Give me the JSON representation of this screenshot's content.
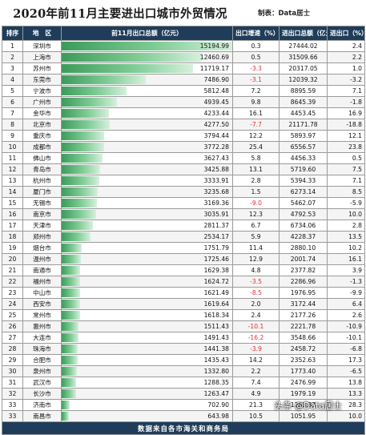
{
  "title": "2020年前11月主要进出口城市外贸情况",
  "maker": "制表：Data居士",
  "headers": [
    "排序",
    "地　区",
    "前11月出口总额（亿元）",
    "出口增速（%）",
    "进出口总额（亿元）",
    "进出口（%）"
  ],
  "footer": "数据来自各市海关和商务局",
  "watermark": "头条 @Data居士",
  "colors": {
    "header_bg": "#1f3d5a",
    "bar": "#5fb878",
    "negative": "#e03030"
  },
  "chart_data": {
    "type": "table",
    "xlim": [
      0,
      15194.99
    ],
    "rows": [
      {
        "rank": "1",
        "city": "深圳市",
        "export": "15194.99",
        "export_growth": "0.3",
        "trade_total": "27444.02",
        "trade_growth": "2.4"
      },
      {
        "rank": "2",
        "city": "上海市",
        "export": "12460.69",
        "export_growth": "0.5",
        "trade_total": "31509.66",
        "trade_growth": "2.2"
      },
      {
        "rank": "3",
        "city": "苏州市",
        "export": "11719.17",
        "export_growth": "-3.3",
        "trade_total": "20317.05",
        "trade_growth": "1.0"
      },
      {
        "rank": "4",
        "city": "东莞市",
        "export": "7486.90",
        "export_growth": "-3.1",
        "trade_total": "12039.32",
        "trade_growth": "-3.2"
      },
      {
        "rank": "5",
        "city": "宁波市",
        "export": "5812.48",
        "export_growth": "7.2",
        "trade_total": "8895.59",
        "trade_growth": "7.1"
      },
      {
        "rank": "6",
        "city": "广州市",
        "export": "4939.45",
        "export_growth": "9.8",
        "trade_total": "8645.39",
        "trade_growth": "-1.8"
      },
      {
        "rank": "7",
        "city": "金华市",
        "export": "4233.44",
        "export_growth": "16.1",
        "trade_total": "4453.45",
        "trade_growth": "16.9"
      },
      {
        "rank": "8",
        "city": "北京市",
        "export": "4277.50",
        "export_growth": "-7.7",
        "trade_total": "21171.78",
        "trade_growth": "-18.8"
      },
      {
        "rank": "9",
        "city": "重庆市",
        "export": "3794.44",
        "export_growth": "12.2",
        "trade_total": "5893.97",
        "trade_growth": "12.1"
      },
      {
        "rank": "10",
        "city": "成都市",
        "export": "3772.28",
        "export_growth": "25.4",
        "trade_total": "6556.57",
        "trade_growth": "23.8"
      },
      {
        "rank": "11",
        "city": "佛山市",
        "export": "3627.43",
        "export_growth": "5.8",
        "trade_total": "4456.33",
        "trade_growth": "0.5"
      },
      {
        "rank": "12",
        "city": "青岛市",
        "export": "3425.88",
        "export_growth": "13.1",
        "trade_total": "5719.60",
        "trade_growth": "7.5"
      },
      {
        "rank": "13",
        "city": "杭州市",
        "export": "3333.91",
        "export_growth": "2.8",
        "trade_total": "5394.33",
        "trade_growth": "7.1"
      },
      {
        "rank": "14",
        "city": "厦门市",
        "export": "3235.68",
        "export_growth": "1.5",
        "trade_total": "6273.14",
        "trade_growth": "8.5"
      },
      {
        "rank": "15",
        "city": "无锡市",
        "export": "3169.36",
        "export_growth": "-9.0",
        "trade_total": "5462.07",
        "trade_growth": "-5.9"
      },
      {
        "rank": "16",
        "city": "南京市",
        "export": "3035.91",
        "export_growth": "12.3",
        "trade_total": "4792.53",
        "trade_growth": "10.0"
      },
      {
        "rank": "17",
        "city": "天津市",
        "export": "2811.37",
        "export_growth": "6.7",
        "trade_total": "6734.06",
        "trade_growth": "2.8"
      },
      {
        "rank": "18",
        "city": "郑州市",
        "export": "2534.17",
        "export_growth": "5.9",
        "trade_total": "4228.37",
        "trade_growth": "13.5"
      },
      {
        "rank": "19",
        "city": "烟台市",
        "export": "1751.79",
        "export_growth": "11.4",
        "trade_total": "2880.10",
        "trade_growth": "10.2"
      },
      {
        "rank": "20",
        "city": "温州市",
        "export": "1725.46",
        "export_growth": "12.9",
        "trade_total": "2001.74",
        "trade_growth": "16.1"
      },
      {
        "rank": "21",
        "city": "南通市",
        "export": "1629.38",
        "export_growth": "4.8",
        "trade_total": "2377.82",
        "trade_growth": "3.9"
      },
      {
        "rank": "22",
        "city": "福州市",
        "export": "1624.72",
        "export_growth": "-3.5",
        "trade_total": "2286.96",
        "trade_growth": "-1.3"
      },
      {
        "rank": "23",
        "city": "中山市",
        "export": "1621.49",
        "export_growth": "-8.5",
        "trade_total": "1976.95",
        "trade_growth": "-9.9"
      },
      {
        "rank": "24",
        "city": "西安市",
        "export": "1619.64",
        "export_growth": "2.0",
        "trade_total": "3172.44",
        "trade_growth": "6.4"
      },
      {
        "rank": "25",
        "city": "常州市",
        "export": "1618.34",
        "export_growth": "2.4",
        "trade_total": "2177.26",
        "trade_growth": "2.6"
      },
      {
        "rank": "26",
        "city": "惠州市",
        "export": "1511.43",
        "export_growth": "-10.1",
        "trade_total": "2221.78",
        "trade_growth": "-10.9"
      },
      {
        "rank": "27",
        "city": "大连市",
        "export": "1491.43",
        "export_growth": "-16.2",
        "trade_total": "3548.66",
        "trade_growth": "-10.1"
      },
      {
        "rank": "28",
        "city": "珠海市",
        "export": "1441.38",
        "export_growth": "-3.9",
        "trade_total": "2458.72",
        "trade_growth": "-6.8"
      },
      {
        "rank": "29",
        "city": "合肥市",
        "export": "1435.43",
        "export_growth": "14.2",
        "trade_total": "2352.63",
        "trade_growth": "17.3"
      },
      {
        "rank": "30",
        "city": "泉州市",
        "export": "1332.80",
        "export_growth": "2.2",
        "trade_total": "1773.40",
        "trade_growth": "-6.5"
      },
      {
        "rank": "31",
        "city": "武汉市",
        "export": "1288.35",
        "export_growth": "7.4",
        "trade_total": "2476.99",
        "trade_growth": "13.8"
      },
      {
        "rank": "32",
        "city": "长沙市",
        "export": "1263.47",
        "export_growth": "4.9",
        "trade_total": "1979.19",
        "trade_growth": "13.3"
      },
      {
        "rank": "33",
        "city": "济南市",
        "export": "702.90",
        "export_growth": "21.3",
        "trade_total": "1283.87",
        "trade_growth": "28.3"
      },
      {
        "rank": "33",
        "city": "南昌市",
        "export": "643.98",
        "export_growth": "10.5",
        "trade_total": "1051.95",
        "trade_growth": "10.0"
      }
    ]
  }
}
